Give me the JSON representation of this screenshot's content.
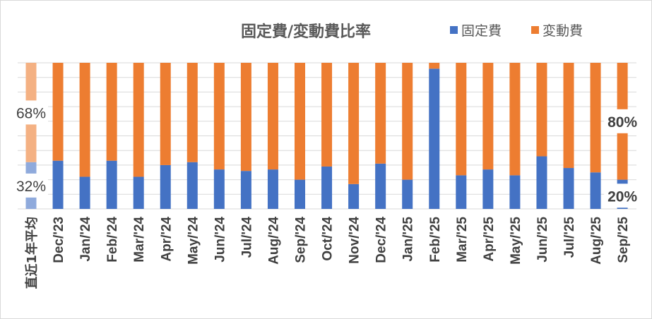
{
  "chart_data": {
    "type": "bar",
    "stacked": "percent",
    "title": "固定費/変動費比率",
    "legend_position": "top-right",
    "grid": true,
    "ylim": [
      0,
      100
    ],
    "categories": [
      "直近1年平均",
      "Dec/'23",
      "Jan/'24",
      "Feb/'24",
      "Mar/'24",
      "Apr/'24",
      "May/'24",
      "Jun/'24",
      "Jul/'24",
      "Aug/'24",
      "Sep/'24",
      "Oct/'24",
      "Nov/'24",
      "Dec/'24",
      "Jan/'25",
      "Feb/'25",
      "Mar/'25",
      "Apr/'25",
      "May/'25",
      "Jun/'25",
      "Jul/'25",
      "Aug/'25",
      "Sep/'25"
    ],
    "series": [
      {
        "name": "固定費",
        "color": "#4472c4",
        "faded_color": "#8faadc",
        "values": [
          32,
          33,
          22,
          33,
          22,
          30,
          32,
          27,
          26,
          27,
          20,
          29,
          17,
          31,
          20,
          96,
          23,
          27,
          23,
          36,
          28,
          25,
          20
        ]
      },
      {
        "name": "変動費",
        "color": "#ed7d31",
        "faded_color": "#f4b183",
        "values": [
          68,
          67,
          78,
          67,
          78,
          70,
          68,
          73,
          74,
          73,
          80,
          71,
          83,
          69,
          80,
          4,
          77,
          73,
          77,
          64,
          72,
          75,
          80
        ]
      }
    ],
    "data_labels": {
      "average_fixed": "32%",
      "average_variable": "68%",
      "latest_fixed": "20%",
      "latest_variable": "80%"
    }
  }
}
